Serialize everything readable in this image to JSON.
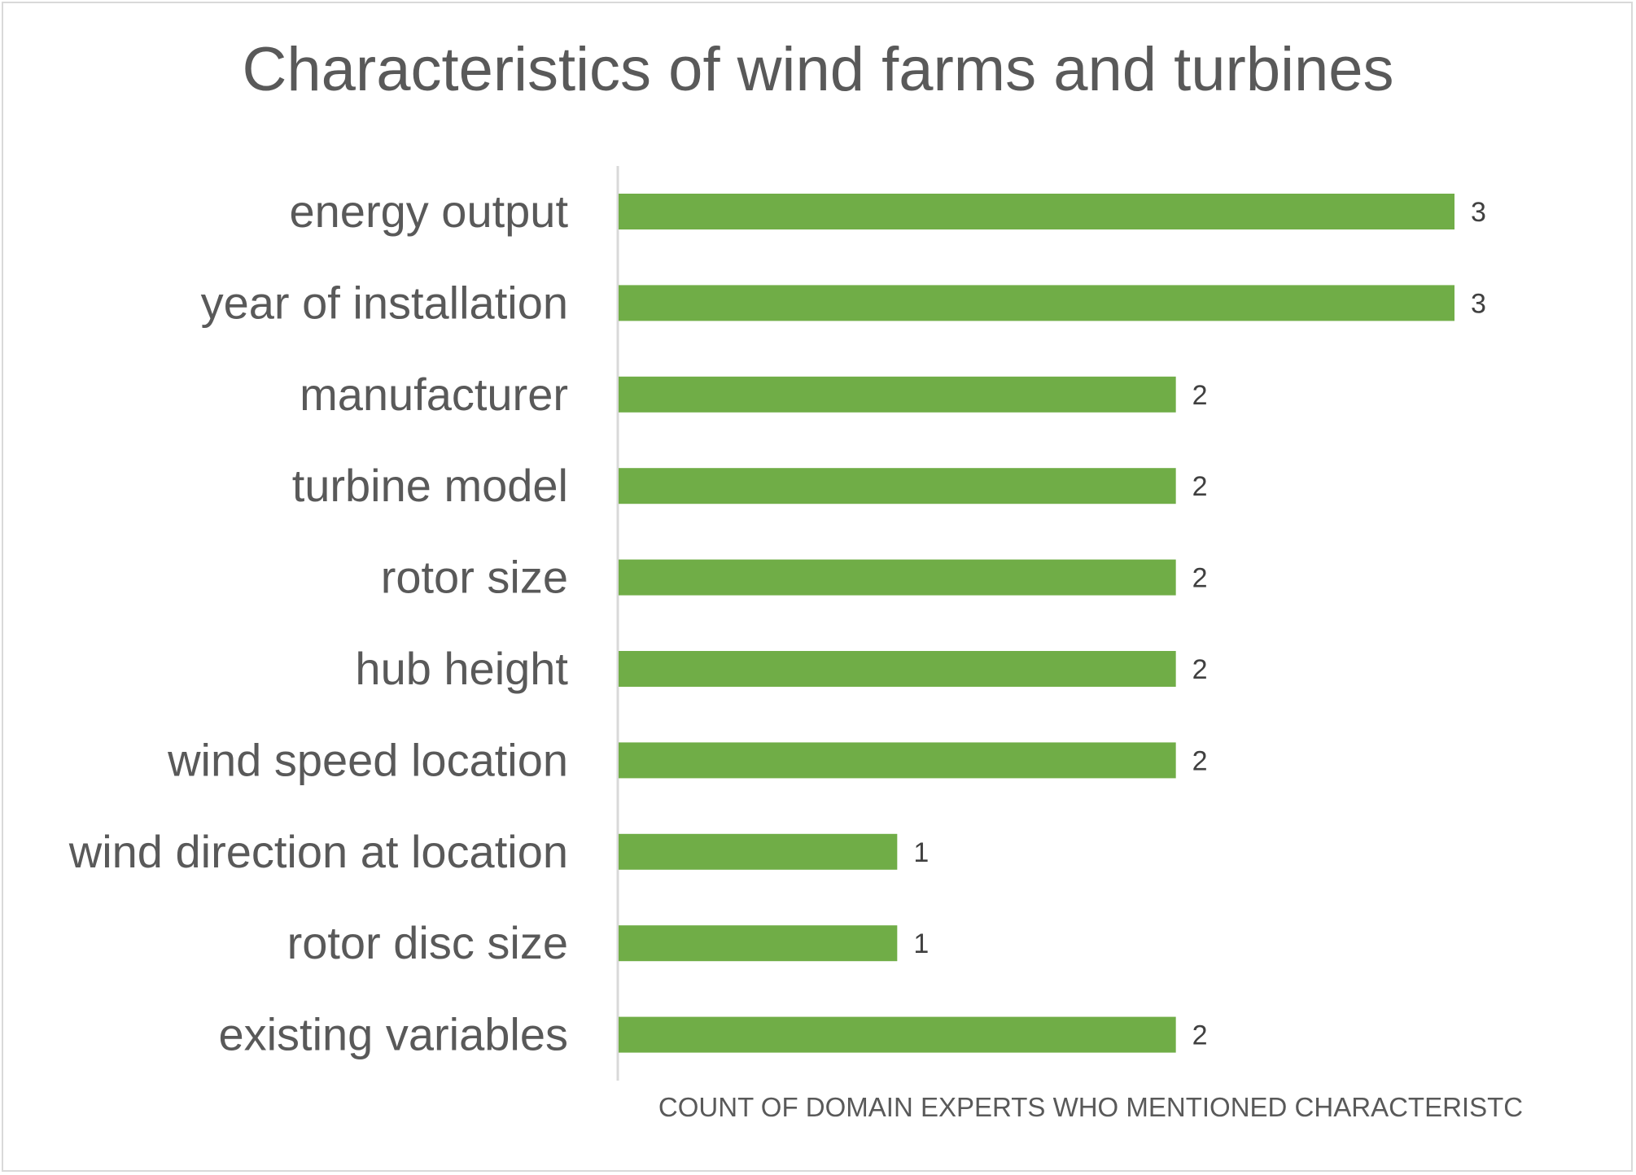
{
  "chart_data": {
    "type": "bar",
    "orientation": "horizontal",
    "title": "Characteristics of wind farms and turbines",
    "xlabel": "COUNT OF DOMAIN EXPERTS WHO MENTIONED CHARACTERISTC",
    "ylabel": "",
    "categories": [
      "energy output",
      "year of installation",
      "manufacturer",
      "turbine model",
      "rotor size",
      "hub height",
      "wind speed location",
      "wind direction at location",
      "rotor disc size",
      "existing variables"
    ],
    "values": [
      3,
      3,
      2,
      2,
      2,
      2,
      2,
      1,
      1,
      2
    ],
    "xlim": [
      0,
      3
    ],
    "grid": false,
    "legend": "none",
    "data_labels": true,
    "bar_color": "#70ad47"
  }
}
